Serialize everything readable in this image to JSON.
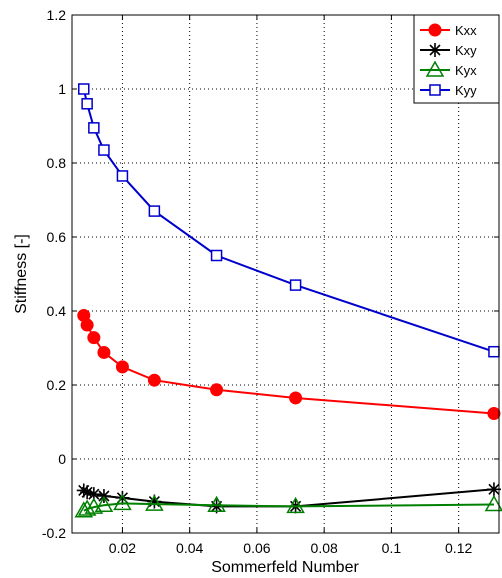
{
  "chart_data": {
    "type": "line",
    "xlabel": "Sommerfeld Number",
    "ylabel": "Stiffness [-]",
    "xlim": [
      0.005,
      0.132
    ],
    "ylim": [
      -0.2,
      1.2
    ],
    "xticks": [
      0.02,
      0.04,
      0.06,
      0.08,
      0.1,
      0.12
    ],
    "xtick_labels": [
      "0.02",
      "0.04",
      "0.06",
      "0.08",
      "0.1",
      "0.12"
    ],
    "yticks": [
      -0.2,
      0,
      0.2,
      0.4,
      0.6,
      0.8,
      1,
      1.2
    ],
    "ytick_labels": [
      "-0.2",
      "0",
      "0.2",
      "0.4",
      "0.6",
      "0.8",
      "1",
      "1.2"
    ],
    "grid": true,
    "legend_position": "top-right",
    "x": [
      0.0085,
      0.0095,
      0.0115,
      0.0145,
      0.02,
      0.0295,
      0.048,
      0.0715,
      0.1305
    ],
    "series": [
      {
        "name": "Kxx",
        "color": "#ff0000",
        "marker": "circle",
        "values": [
          0.388,
          0.362,
          0.328,
          0.288,
          0.249,
          0.213,
          0.187,
          0.165,
          0.123
        ]
      },
      {
        "name": "Kxy",
        "color": "#000000",
        "marker": "asterisk",
        "values": [
          -0.085,
          -0.09,
          -0.095,
          -0.1,
          -0.105,
          -0.115,
          -0.128,
          -0.128,
          -0.082
        ]
      },
      {
        "name": "Kyx",
        "color": "#008000",
        "marker": "triangle",
        "values": [
          -0.14,
          -0.135,
          -0.13,
          -0.125,
          -0.12,
          -0.122,
          -0.125,
          -0.128,
          -0.123
        ]
      },
      {
        "name": "Kyy",
        "color": "#0000cc",
        "marker": "square",
        "values": [
          1.0,
          0.96,
          0.895,
          0.835,
          0.765,
          0.67,
          0.55,
          0.47,
          0.29
        ]
      }
    ]
  }
}
